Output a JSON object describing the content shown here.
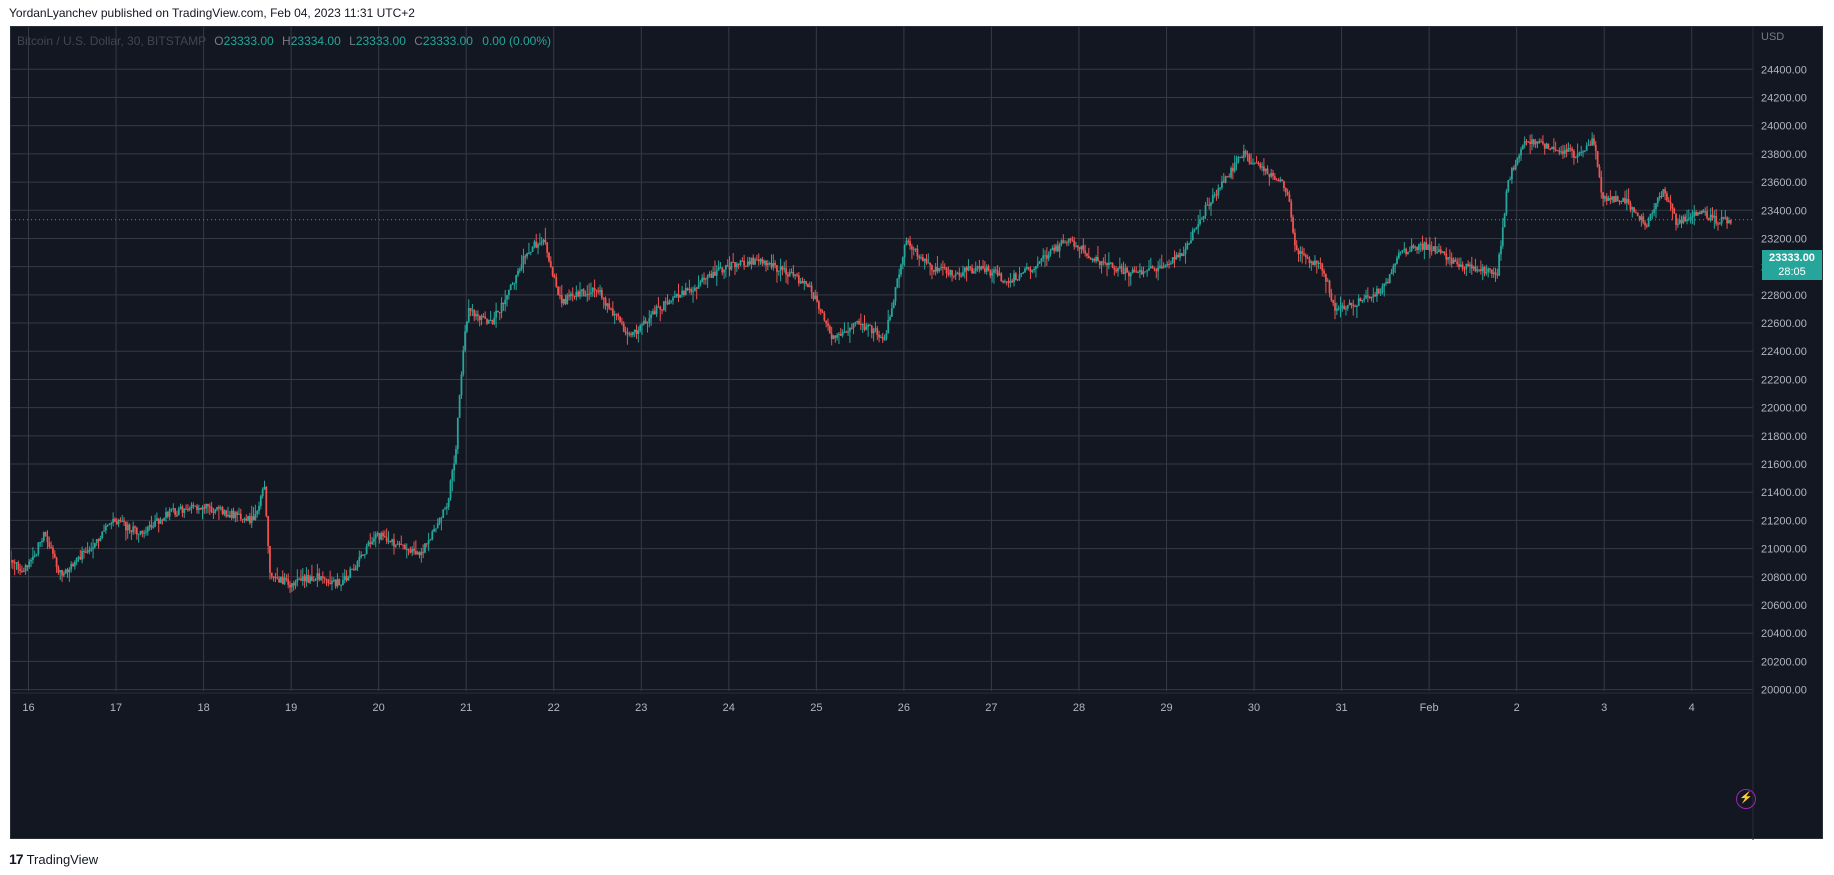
{
  "header": {
    "published_text": "YordanLyanchev published on TradingView.com, Feb 04, 2023 11:31 UTC+2"
  },
  "legend": {
    "symbol": "Bitcoin / U.S. Dollar, 30, BITSTAMP",
    "open_label": "O",
    "open": "23333.00",
    "high_label": "H",
    "high": "23334.00",
    "low_label": "L",
    "low": "23333.00",
    "close_label": "C",
    "close": "23333.00",
    "change": "0.00 (0.00%)"
  },
  "price_tag": {
    "price": "23333.00",
    "countdown": "28:05"
  },
  "footer": {
    "logo_glyph": "17",
    "brand": "TradingView"
  },
  "colors": {
    "background": "#131722",
    "grid": "#363a45",
    "up": "#26a69a",
    "down": "#ef5350",
    "text": "#b2b5be"
  },
  "chart_data": {
    "type": "candlestick",
    "interval": "30",
    "currency_label": "USD",
    "x_tick_labels": [
      "16",
      "17",
      "18",
      "19",
      "20",
      "21",
      "22",
      "23",
      "24",
      "25",
      "26",
      "27",
      "28",
      "29",
      "30",
      "31",
      "Feb",
      "2",
      "3",
      "4"
    ],
    "y_tick_labels": [
      "20000.00",
      "20200.00",
      "20400.00",
      "20600.00",
      "20800.00",
      "21000.00",
      "21200.00",
      "21400.00",
      "21600.00",
      "21800.00",
      "22000.00",
      "22200.00",
      "22400.00",
      "22600.00",
      "22800.00",
      "23000.00",
      "23200.00",
      "23400.00",
      "23600.00",
      "23800.00",
      "24000.00",
      "24200.00",
      "24400.00"
    ],
    "y_axis_range": [
      19990,
      24700
    ],
    "x_axis_days_range": [
      15.8,
      35.7
    ],
    "last_price": 23333.0,
    "grid": true,
    "candles_per_day": 48,
    "path_keypoints": [
      {
        "day": 15.8,
        "price": 20900
      },
      {
        "day": 16.0,
        "price": 20850
      },
      {
        "day": 16.2,
        "price": 21100
      },
      {
        "day": 16.4,
        "price": 20800
      },
      {
        "day": 16.7,
        "price": 21000
      },
      {
        "day": 17.0,
        "price": 21200
      },
      {
        "day": 17.3,
        "price": 21100
      },
      {
        "day": 17.6,
        "price": 21250
      },
      {
        "day": 18.0,
        "price": 21300
      },
      {
        "day": 18.3,
        "price": 21250
      },
      {
        "day": 18.6,
        "price": 21200
      },
      {
        "day": 18.72,
        "price": 21450
      },
      {
        "day": 18.78,
        "price": 20800
      },
      {
        "day": 19.0,
        "price": 20750
      },
      {
        "day": 19.3,
        "price": 20800
      },
      {
        "day": 19.6,
        "price": 20750
      },
      {
        "day": 20.0,
        "price": 21100
      },
      {
        "day": 20.3,
        "price": 21000
      },
      {
        "day": 20.5,
        "price": 20950
      },
      {
        "day": 20.8,
        "price": 21300
      },
      {
        "day": 20.9,
        "price": 21700
      },
      {
        "day": 21.0,
        "price": 22500
      },
      {
        "day": 21.05,
        "price": 22700
      },
      {
        "day": 21.3,
        "price": 22600
      },
      {
        "day": 21.5,
        "price": 22800
      },
      {
        "day": 21.7,
        "price": 23100
      },
      {
        "day": 21.9,
        "price": 23200
      },
      {
        "day": 22.1,
        "price": 22750
      },
      {
        "day": 22.5,
        "price": 22850
      },
      {
        "day": 22.9,
        "price": 22500
      },
      {
        "day": 23.2,
        "price": 22700
      },
      {
        "day": 23.6,
        "price": 22850
      },
      {
        "day": 24.0,
        "price": 23000
      },
      {
        "day": 24.4,
        "price": 23050
      },
      {
        "day": 24.7,
        "price": 22950
      },
      {
        "day": 24.95,
        "price": 22850
      },
      {
        "day": 25.2,
        "price": 22500
      },
      {
        "day": 25.5,
        "price": 22600
      },
      {
        "day": 25.8,
        "price": 22500
      },
      {
        "day": 25.95,
        "price": 22900
      },
      {
        "day": 26.05,
        "price": 23200
      },
      {
        "day": 26.3,
        "price": 23000
      },
      {
        "day": 26.6,
        "price": 22950
      },
      {
        "day": 26.9,
        "price": 23000
      },
      {
        "day": 27.2,
        "price": 22900
      },
      {
        "day": 27.5,
        "price": 23000
      },
      {
        "day": 27.9,
        "price": 23200
      },
      {
        "day": 28.2,
        "price": 23050
      },
      {
        "day": 28.6,
        "price": 22950
      },
      {
        "day": 29.0,
        "price": 23000
      },
      {
        "day": 29.2,
        "price": 23100
      },
      {
        "day": 29.5,
        "price": 23450
      },
      {
        "day": 29.9,
        "price": 23800
      },
      {
        "day": 30.2,
        "price": 23650
      },
      {
        "day": 30.4,
        "price": 23550
      },
      {
        "day": 30.5,
        "price": 23100
      },
      {
        "day": 30.8,
        "price": 23000
      },
      {
        "day": 30.95,
        "price": 22700
      },
      {
        "day": 31.2,
        "price": 22750
      },
      {
        "day": 31.5,
        "price": 22850
      },
      {
        "day": 31.7,
        "price": 23100
      },
      {
        "day": 32.0,
        "price": 23150
      },
      {
        "day": 32.4,
        "price": 23000
      },
      {
        "day": 32.8,
        "price": 22950
      },
      {
        "day": 32.92,
        "price": 23600
      },
      {
        "day": 33.1,
        "price": 23900
      },
      {
        "day": 33.4,
        "price": 23850
      },
      {
        "day": 33.7,
        "price": 23800
      },
      {
        "day": 33.9,
        "price": 23900
      },
      {
        "day": 34.0,
        "price": 23500
      },
      {
        "day": 34.3,
        "price": 23450
      },
      {
        "day": 34.5,
        "price": 23300
      },
      {
        "day": 34.7,
        "price": 23550
      },
      {
        "day": 34.85,
        "price": 23300
      },
      {
        "day": 35.1,
        "price": 23400
      },
      {
        "day": 35.3,
        "price": 23333
      },
      {
        "day": 35.45,
        "price": 23333
      }
    ]
  }
}
